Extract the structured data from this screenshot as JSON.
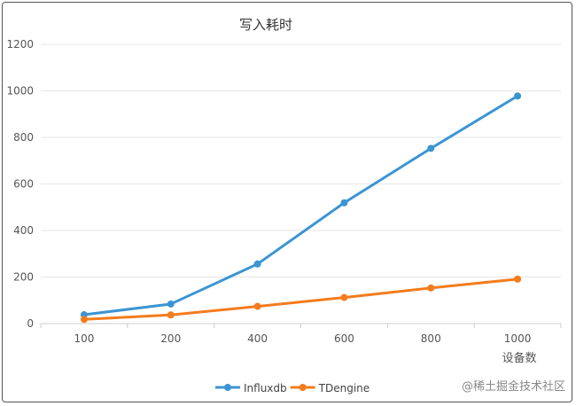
{
  "chart_data": {
    "type": "line",
    "title": "写入耗时",
    "xlabel": "设备数",
    "ylabel": "",
    "categories": [
      "100",
      "200",
      "400",
      "600",
      "800",
      "1000"
    ],
    "ylim": [
      0,
      1200
    ],
    "yticks": [
      0,
      200,
      400,
      600,
      800,
      1000,
      1200
    ],
    "grid": true,
    "legend": "bottom",
    "series": [
      {
        "name": "Influxdb",
        "color": "#3b95d3",
        "values": [
          38,
          84,
          256,
          519,
          753,
          978
        ]
      },
      {
        "name": "TDengine",
        "color": "#f47c1c",
        "values": [
          18,
          37,
          74,
          112,
          153,
          191
        ]
      }
    ]
  },
  "watermark": "@稀土掘金技术社区"
}
